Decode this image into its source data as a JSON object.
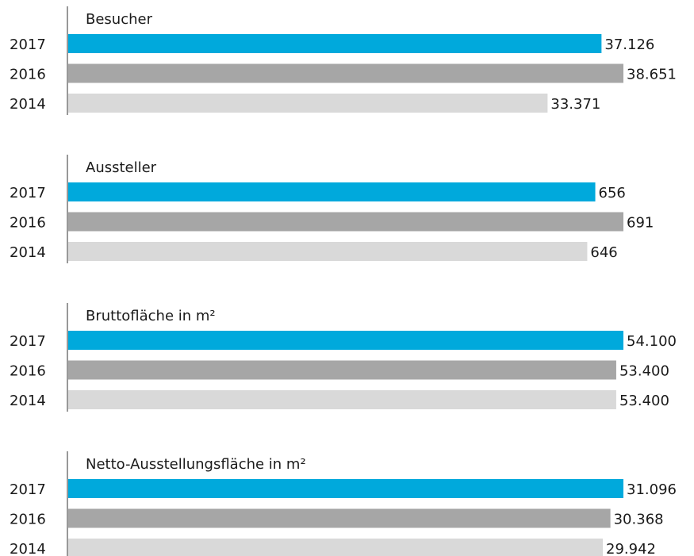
{
  "chart_data": [
    {
      "type": "bar",
      "orientation": "horizontal",
      "title": "Besucher",
      "categories": [
        "2017",
        "2016",
        "2014"
      ],
      "values": [
        37126,
        38651,
        33371
      ],
      "value_labels": [
        "37.126",
        "38.651",
        "33.371"
      ],
      "colors": [
        "#00a9dc",
        "#a6a6a6",
        "#d9d9d9"
      ]
    },
    {
      "type": "bar",
      "orientation": "horizontal",
      "title": "Aussteller",
      "categories": [
        "2017",
        "2016",
        "2014"
      ],
      "values": [
        656,
        691,
        646
      ],
      "colors": [
        "#00a9dc",
        "#a6a6a6",
        "#d9d9d9"
      ]
    },
    {
      "type": "bar",
      "orientation": "horizontal",
      "title": "Bruttofläche in m²",
      "categories": [
        "2017",
        "2016",
        "2014"
      ],
      "values": [
        54100,
        53400,
        53400
      ],
      "value_labels": [
        "54.100",
        "53.400",
        "53.400"
      ],
      "colors": [
        "#00a9dc",
        "#a6a6a6",
        "#d9d9d9"
      ]
    },
    {
      "type": "bar",
      "orientation": "horizontal",
      "title": "Netto-Ausstellungsfläche in m²",
      "categories": [
        "2017",
        "2016",
        "2014"
      ],
      "values": [
        31096,
        30368,
        29942
      ],
      "value_labels": [
        "31.096",
        "30.368",
        "29.942"
      ],
      "colors": [
        "#00a9dc",
        "#a6a6a6",
        "#d9d9d9"
      ]
    }
  ]
}
